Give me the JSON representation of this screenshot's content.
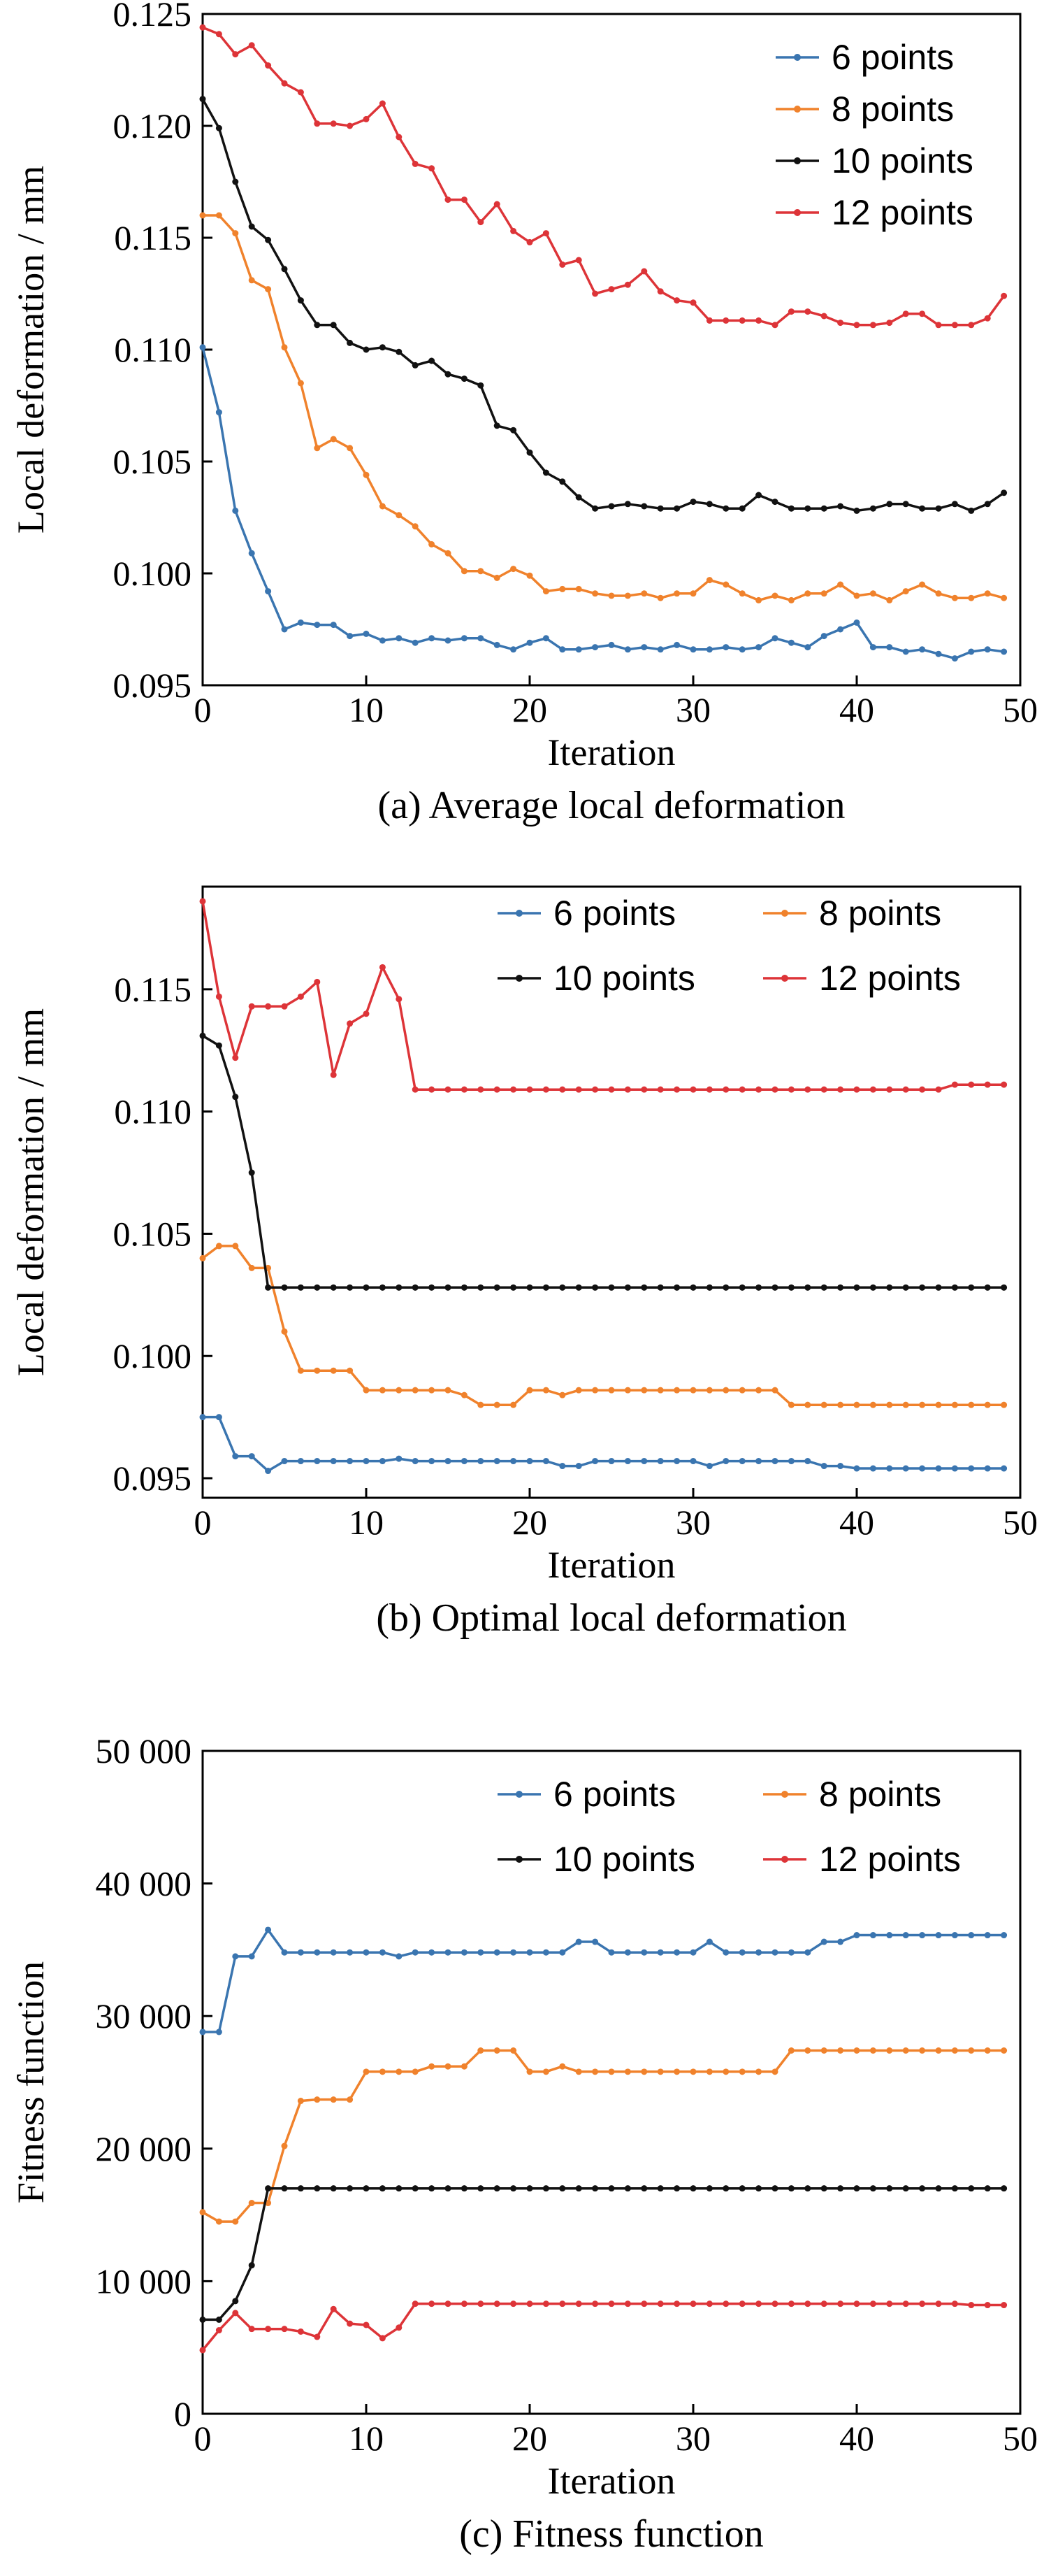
{
  "chart_data": [
    {
      "type": "line",
      "caption": "(a) Average local deformation",
      "xlabel": "Iteration",
      "ylabel": "Local deformation / mm",
      "xlim": [
        0,
        50
      ],
      "ylim": [
        0.095,
        0.125
      ],
      "xticks": [
        0,
        10,
        20,
        30,
        40,
        50
      ],
      "xtick_labels": [
        "0",
        "10",
        "20",
        "30",
        "40",
        "50"
      ],
      "yticks": [
        0.095,
        0.1,
        0.105,
        0.11,
        0.115,
        0.12,
        0.125
      ],
      "ytick_labels": [
        "0.095",
        "0.100",
        "0.105",
        "0.110",
        "0.115",
        "0.120",
        "0.125"
      ],
      "legend_position": "top-right",
      "legend_columns": 1,
      "x": [
        0,
        1,
        2,
        3,
        4,
        5,
        6,
        7,
        8,
        9,
        10,
        11,
        12,
        13,
        14,
        15,
        16,
        17,
        18,
        19,
        20,
        21,
        22,
        23,
        24,
        25,
        26,
        27,
        28,
        29,
        30,
        31,
        32,
        33,
        34,
        35,
        36,
        37,
        38,
        39,
        40,
        41,
        42,
        43,
        44,
        45,
        46,
        47,
        48,
        49
      ],
      "series": [
        {
          "name": "6 points",
          "color": "#3a75b0",
          "values": [
            0.1101,
            0.1072,
            0.1028,
            0.1009,
            0.0992,
            0.0975,
            0.0978,
            0.0977,
            0.0977,
            0.0972,
            0.0973,
            0.097,
            0.0971,
            0.0969,
            0.0971,
            0.097,
            0.0971,
            0.0971,
            0.0968,
            0.0966,
            0.0969,
            0.0971,
            0.0966,
            0.0966,
            0.0967,
            0.0968,
            0.0966,
            0.0967,
            0.0966,
            0.0968,
            0.0966,
            0.0966,
            0.0967,
            0.0966,
            0.0967,
            0.0971,
            0.0969,
            0.0967,
            0.0972,
            0.0975,
            0.0978,
            0.0967,
            0.0967,
            0.0965,
            0.0966,
            0.0964,
            0.0962,
            0.0965,
            0.0966,
            0.0965
          ]
        },
        {
          "name": "8 points",
          "color": "#f0822c",
          "values": [
            0.116,
            0.116,
            0.1152,
            0.1131,
            0.1127,
            0.1101,
            0.1085,
            0.1056,
            0.106,
            0.1056,
            0.1044,
            0.103,
            0.1026,
            0.1021,
            0.1013,
            0.1009,
            0.1001,
            0.1001,
            0.0998,
            0.1002,
            0.0999,
            0.0992,
            0.0993,
            0.0993,
            0.0991,
            0.099,
            0.099,
            0.0991,
            0.0989,
            0.0991,
            0.0991,
            0.0997,
            0.0995,
            0.0991,
            0.0988,
            0.099,
            0.0988,
            0.0991,
            0.0991,
            0.0995,
            0.099,
            0.0991,
            0.0988,
            0.0992,
            0.0995,
            0.0991,
            0.0989,
            0.0989,
            0.0991,
            0.0989
          ]
        },
        {
          "name": "10 points",
          "color": "#111111",
          "values": [
            0.1212,
            0.1199,
            0.1175,
            0.1155,
            0.1149,
            0.1136,
            0.1122,
            0.1111,
            0.1111,
            0.1103,
            0.11,
            0.1101,
            0.1099,
            0.1093,
            0.1095,
            0.1089,
            0.1087,
            0.1084,
            0.1066,
            0.1064,
            0.1054,
            0.1045,
            0.1041,
            0.1034,
            0.1029,
            0.103,
            0.1031,
            0.103,
            0.1029,
            0.1029,
            0.1032,
            0.1031,
            0.1029,
            0.1029,
            0.1035,
            0.1032,
            0.1029,
            0.1029,
            0.1029,
            0.103,
            0.1028,
            0.1029,
            0.1031,
            0.1031,
            0.1029,
            0.1029,
            0.1031,
            0.1028,
            0.1031,
            0.1036
          ]
        },
        {
          "name": "12 points",
          "color": "#dd3438",
          "values": [
            0.1244,
            0.1241,
            0.1232,
            0.1236,
            0.1227,
            0.1219,
            0.1215,
            0.1201,
            0.1201,
            0.12,
            0.1203,
            0.121,
            0.1195,
            0.1183,
            0.1181,
            0.1167,
            0.1167,
            0.1157,
            0.1165,
            0.1153,
            0.1148,
            0.1152,
            0.1138,
            0.114,
            0.1125,
            0.1127,
            0.1129,
            0.1135,
            0.1126,
            0.1122,
            0.1121,
            0.1113,
            0.1113,
            0.1113,
            0.1113,
            0.1111,
            0.1117,
            0.1117,
            0.1115,
            0.1112,
            0.1111,
            0.1111,
            0.1112,
            0.1116,
            0.1116,
            0.1111,
            0.1111,
            0.1111,
            0.1114,
            0.1124
          ]
        }
      ]
    },
    {
      "type": "line",
      "caption": "(b) Optimal local deformation",
      "xlabel": "Iteration",
      "ylabel": "Local deformation / mm",
      "xlim": [
        0,
        50
      ],
      "ylim": [
        0.0942,
        0.1192
      ],
      "xticks": [
        0,
        10,
        20,
        30,
        40,
        50
      ],
      "xtick_labels": [
        "0",
        "10",
        "20",
        "30",
        "40",
        "50"
      ],
      "yticks": [
        0.095,
        0.1,
        0.105,
        0.11,
        0.115
      ],
      "ytick_labels": [
        "0.095",
        "0.100",
        "0.105",
        "0.110",
        "0.115"
      ],
      "legend_position": "top-right",
      "legend_columns": 2,
      "x": [
        0,
        1,
        2,
        3,
        4,
        5,
        6,
        7,
        8,
        9,
        10,
        11,
        12,
        13,
        14,
        15,
        16,
        17,
        18,
        19,
        20,
        21,
        22,
        23,
        24,
        25,
        26,
        27,
        28,
        29,
        30,
        31,
        32,
        33,
        34,
        35,
        36,
        37,
        38,
        39,
        40,
        41,
        42,
        43,
        44,
        45,
        46,
        47,
        48,
        49
      ],
      "series": [
        {
          "name": "6 points",
          "color": "#3a75b0",
          "values": [
            0.0975,
            0.0975,
            0.0959,
            0.0959,
            0.0953,
            0.0957,
            0.0957,
            0.0957,
            0.0957,
            0.0957,
            0.0957,
            0.0957,
            0.0958,
            0.0957,
            0.0957,
            0.0957,
            0.0957,
            0.0957,
            0.0957,
            0.0957,
            0.0957,
            0.0957,
            0.0955,
            0.0955,
            0.0957,
            0.0957,
            0.0957,
            0.0957,
            0.0957,
            0.0957,
            0.0957,
            0.0955,
            0.0957,
            0.0957,
            0.0957,
            0.0957,
            0.0957,
            0.0957,
            0.0955,
            0.0955,
            0.0954,
            0.0954,
            0.0954,
            0.0954,
            0.0954,
            0.0954,
            0.0954,
            0.0954,
            0.0954,
            0.0954
          ]
        },
        {
          "name": "8 points",
          "color": "#f0822c",
          "values": [
            0.104,
            0.1045,
            0.1045,
            0.1036,
            0.1036,
            0.101,
            0.0994,
            0.0994,
            0.0994,
            0.0994,
            0.0986,
            0.0986,
            0.0986,
            0.0986,
            0.0986,
            0.0986,
            0.0984,
            0.098,
            0.098,
            0.098,
            0.0986,
            0.0986,
            0.0984,
            0.0986,
            0.0986,
            0.0986,
            0.0986,
            0.0986,
            0.0986,
            0.0986,
            0.0986,
            0.0986,
            0.0986,
            0.0986,
            0.0986,
            0.0986,
            0.098,
            0.098,
            0.098,
            0.098,
            0.098,
            0.098,
            0.098,
            0.098,
            0.098,
            0.098,
            0.098,
            0.098,
            0.098,
            0.098
          ]
        },
        {
          "name": "10 points",
          "color": "#111111",
          "values": [
            0.1131,
            0.1127,
            0.1106,
            0.1075,
            0.1028,
            0.1028,
            0.1028,
            0.1028,
            0.1028,
            0.1028,
            0.1028,
            0.1028,
            0.1028,
            0.1028,
            0.1028,
            0.1028,
            0.1028,
            0.1028,
            0.1028,
            0.1028,
            0.1028,
            0.1028,
            0.1028,
            0.1028,
            0.1028,
            0.1028,
            0.1028,
            0.1028,
            0.1028,
            0.1028,
            0.1028,
            0.1028,
            0.1028,
            0.1028,
            0.1028,
            0.1028,
            0.1028,
            0.1028,
            0.1028,
            0.1028,
            0.1028,
            0.1028,
            0.1028,
            0.1028,
            0.1028,
            0.1028,
            0.1028,
            0.1028,
            0.1028,
            0.1028
          ]
        },
        {
          "name": "12 points",
          "color": "#dd3438",
          "values": [
            0.1186,
            0.1147,
            0.1122,
            0.1143,
            0.1143,
            0.1143,
            0.1147,
            0.1153,
            0.1115,
            0.1136,
            0.114,
            0.1159,
            0.1146,
            0.1109,
            0.1109,
            0.1109,
            0.1109,
            0.1109,
            0.1109,
            0.1109,
            0.1109,
            0.1109,
            0.1109,
            0.1109,
            0.1109,
            0.1109,
            0.1109,
            0.1109,
            0.1109,
            0.1109,
            0.1109,
            0.1109,
            0.1109,
            0.1109,
            0.1109,
            0.1109,
            0.1109,
            0.1109,
            0.1109,
            0.1109,
            0.1109,
            0.1109,
            0.1109,
            0.1109,
            0.1109,
            0.1109,
            0.1111,
            0.1111,
            0.1111,
            0.1111
          ]
        }
      ]
    },
    {
      "type": "line",
      "caption": "(c) Fitness function",
      "xlabel": "Iteration",
      "ylabel": "Fitness function",
      "xlim": [
        0,
        50
      ],
      "ylim": [
        0,
        50000
      ],
      "xticks": [
        0,
        10,
        20,
        30,
        40,
        50
      ],
      "xtick_labels": [
        "0",
        "10",
        "20",
        "30",
        "40",
        "50"
      ],
      "yticks": [
        0,
        10000,
        20000,
        30000,
        40000,
        50000
      ],
      "ytick_labels": [
        "0",
        "10 000",
        "20 000",
        "30 000",
        "40 000",
        "50 000"
      ],
      "legend_position": "top-right",
      "legend_columns": 2,
      "x": [
        0,
        1,
        2,
        3,
        4,
        5,
        6,
        7,
        8,
        9,
        10,
        11,
        12,
        13,
        14,
        15,
        16,
        17,
        18,
        19,
        20,
        21,
        22,
        23,
        24,
        25,
        26,
        27,
        28,
        29,
        30,
        31,
        32,
        33,
        34,
        35,
        36,
        37,
        38,
        39,
        40,
        41,
        42,
        43,
        44,
        45,
        46,
        47,
        48,
        49
      ],
      "series": [
        {
          "name": "6 points",
          "color": "#3a75b0",
          "values": [
            28800,
            28800,
            34500,
            34500,
            36500,
            34800,
            34800,
            34800,
            34800,
            34800,
            34800,
            34800,
            34500,
            34800,
            34800,
            34800,
            34800,
            34800,
            34800,
            34800,
            34800,
            34800,
            34800,
            35600,
            35600,
            34800,
            34800,
            34800,
            34800,
            34800,
            34800,
            35600,
            34800,
            34800,
            34800,
            34800,
            34800,
            34800,
            35600,
            35600,
            36100,
            36100,
            36100,
            36100,
            36100,
            36100,
            36100,
            36100,
            36100,
            36100
          ]
        },
        {
          "name": "8 points",
          "color": "#f0822c",
          "values": [
            15200,
            14500,
            14500,
            15900,
            15900,
            20200,
            23600,
            23700,
            23700,
            23700,
            25800,
            25800,
            25800,
            25800,
            26200,
            26200,
            26200,
            27400,
            27400,
            27400,
            25800,
            25800,
            26200,
            25800,
            25800,
            25800,
            25800,
            25800,
            25800,
            25800,
            25800,
            25800,
            25800,
            25800,
            25800,
            25800,
            27400,
            27400,
            27400,
            27400,
            27400,
            27400,
            27400,
            27400,
            27400,
            27400,
            27400,
            27400,
            27400,
            27400
          ]
        },
        {
          "name": "10 points",
          "color": "#111111",
          "values": [
            7100,
            7100,
            8500,
            11200,
            17000,
            17000,
            17000,
            17000,
            17000,
            17000,
            17000,
            17000,
            17000,
            17000,
            17000,
            17000,
            17000,
            17000,
            17000,
            17000,
            17000,
            17000,
            17000,
            17000,
            17000,
            17000,
            17000,
            17000,
            17000,
            17000,
            17000,
            17000,
            17000,
            17000,
            17000,
            17000,
            17000,
            17000,
            17000,
            17000,
            17000,
            17000,
            17000,
            17000,
            17000,
            17000,
            17000,
            17000,
            17000,
            17000
          ]
        },
        {
          "name": "12 points",
          "color": "#dd3438",
          "values": [
            4800,
            6300,
            7600,
            6400,
            6400,
            6400,
            6200,
            5800,
            7900,
            6800,
            6700,
            5700,
            6500,
            8300,
            8300,
            8300,
            8300,
            8300,
            8300,
            8300,
            8300,
            8300,
            8300,
            8300,
            8300,
            8300,
            8300,
            8300,
            8300,
            8300,
            8300,
            8300,
            8300,
            8300,
            8300,
            8300,
            8300,
            8300,
            8300,
            8300,
            8300,
            8300,
            8300,
            8300,
            8300,
            8300,
            8300,
            8200,
            8200,
            8200
          ]
        }
      ]
    }
  ]
}
